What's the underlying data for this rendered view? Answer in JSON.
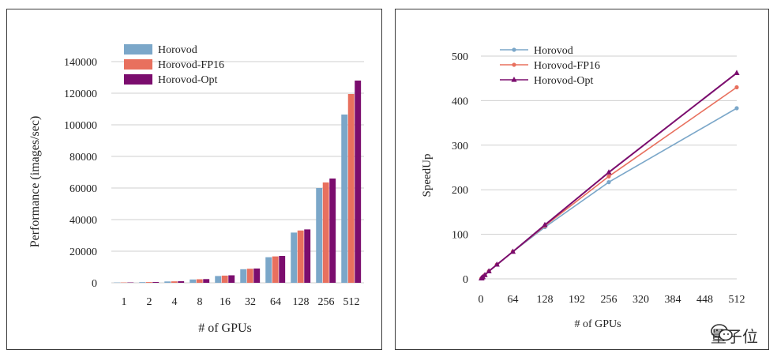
{
  "colors": {
    "horovod": "#7ba7c9",
    "horovod_fp16": "#e8705e",
    "horovod_opt": "#7b0d6e",
    "grid": "#cfcfcf"
  },
  "chart_data": [
    {
      "type": "bar",
      "categories": [
        "1",
        "2",
        "4",
        "8",
        "16",
        "32",
        "64",
        "128",
        "256",
        "512"
      ],
      "series": [
        {
          "name": "Horovod",
          "values": [
            200,
            420,
            850,
            2100,
            4300,
            8600,
            16200,
            31800,
            60000,
            106500
          ]
        },
        {
          "name": "Horovod-FP16",
          "values": [
            220,
            460,
            920,
            2250,
            4550,
            8900,
            16700,
            33100,
            63500,
            119500
          ]
        },
        {
          "name": "Horovod-Opt",
          "values": [
            240,
            490,
            980,
            2350,
            4750,
            9050,
            17000,
            33800,
            66000,
            128000
          ]
        }
      ],
      "xlabel": "# of GPUs",
      "ylabel": "Performance (images/sec)",
      "ylim": [
        0,
        140000
      ],
      "yticks": [
        0,
        20000,
        40000,
        60000,
        80000,
        100000,
        120000,
        140000
      ],
      "grid": true,
      "legend": "top-left"
    },
    {
      "type": "line",
      "x": [
        1,
        2,
        4,
        8,
        16,
        32,
        64,
        128,
        256,
        512
      ],
      "series": [
        {
          "name": "Horovod",
          "values": [
            1,
            2,
            4,
            8.5,
            17,
            32,
            61,
            116,
            217,
            383
          ]
        },
        {
          "name": "Horovod-FP16",
          "values": [
            1,
            2,
            4,
            8.5,
            17,
            32,
            61,
            119,
            230,
            430
          ]
        },
        {
          "name": "Horovod-Opt",
          "values": [
            1,
            2,
            4,
            8.5,
            17,
            32,
            61,
            121,
            239,
            462
          ]
        }
      ],
      "xlabel": "# of GPUs",
      "ylabel": "SpeedUp",
      "xlim": [
        0,
        512
      ],
      "ylim": [
        0,
        500
      ],
      "xticks": [
        0,
        64,
        128,
        192,
        256,
        320,
        384,
        448,
        512
      ],
      "yticks": [
        0,
        100,
        200,
        300,
        400,
        500
      ],
      "grid": true,
      "legend": "top-left"
    }
  ],
  "watermark": {
    "text": "量子位",
    "icon": "wechat-icon"
  }
}
